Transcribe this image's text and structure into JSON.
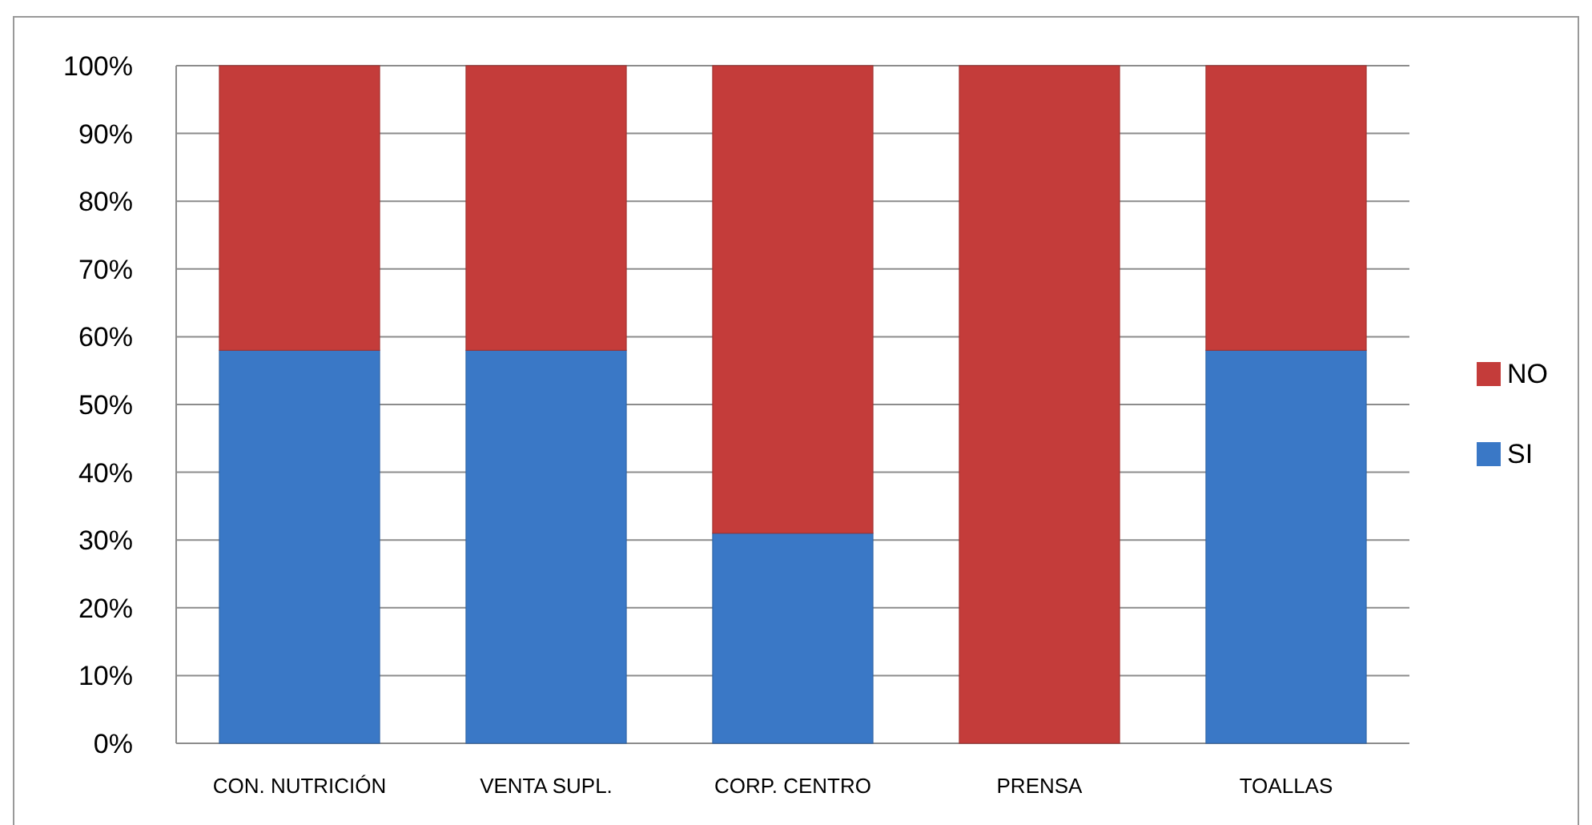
{
  "chart_data": {
    "type": "bar",
    "stacked": true,
    "categories": [
      "CON. NUTRICIÓN",
      "VENTA SUPL.",
      "CORP. CENTRO",
      "PRENSA",
      "TOALLAS"
    ],
    "series": [
      {
        "name": "SI",
        "color": "#3a78c6",
        "values": [
          58,
          58,
          31,
          0,
          58
        ]
      },
      {
        "name": "NO",
        "color": "#c43c3a",
        "values": [
          42,
          42,
          69,
          100,
          42
        ]
      }
    ],
    "ylim": [
      0,
      100
    ],
    "yticks": [
      {
        "value": 0,
        "label": "0%"
      },
      {
        "value": 10,
        "label": "10%"
      },
      {
        "value": 20,
        "label": "20%"
      },
      {
        "value": 30,
        "label": "30%"
      },
      {
        "value": 40,
        "label": "40%"
      },
      {
        "value": 50,
        "label": "50%"
      },
      {
        "value": 60,
        "label": "60%"
      },
      {
        "value": 70,
        "label": "70%"
      },
      {
        "value": 80,
        "label": "80%"
      },
      {
        "value": 90,
        "label": "90%"
      },
      {
        "value": 100,
        "label": "100%"
      }
    ],
    "grid": "y",
    "legend": "right"
  }
}
